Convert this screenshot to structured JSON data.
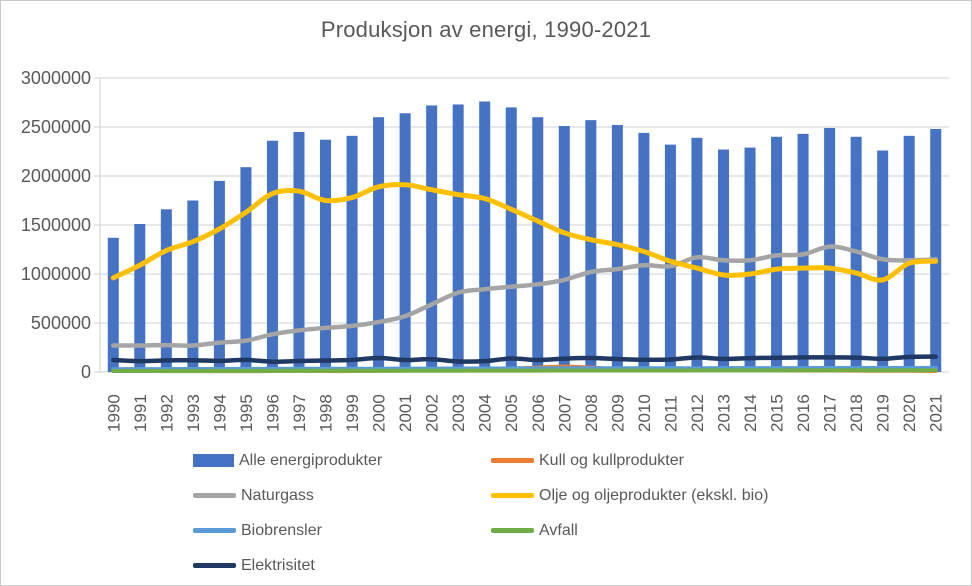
{
  "chart_data": {
    "type": "bar",
    "title": "Produksjon av energi, 1990-2021",
    "xlabel": "",
    "ylabel": "",
    "ylim": [
      0,
      3000000
    ],
    "y_ticks": [
      0,
      500000,
      1000000,
      1500000,
      2000000,
      2500000,
      3000000
    ],
    "grid": true,
    "legend_position": "bottom",
    "text_color": "#595959",
    "grid_color": "#D9D9D9",
    "categories": [
      1990,
      1991,
      1992,
      1993,
      1994,
      1995,
      1996,
      1997,
      1998,
      1999,
      2000,
      2001,
      2002,
      2003,
      2004,
      2005,
      2006,
      2007,
      2008,
      2009,
      2010,
      2011,
      2012,
      2013,
      2014,
      2015,
      2016,
      2017,
      2018,
      2019,
      2020,
      2021
    ],
    "bar_series": {
      "name": "Alle energiprodukter",
      "color": "#4472C4",
      "values": [
        1370000,
        1510000,
        1660000,
        1750000,
        1950000,
        2090000,
        2360000,
        2450000,
        2370000,
        2410000,
        2600000,
        2640000,
        2720000,
        2730000,
        2760000,
        2700000,
        2600000,
        2510000,
        2570000,
        2520000,
        2440000,
        2320000,
        2390000,
        2270000,
        2290000,
        2400000,
        2430000,
        2490000,
        2400000,
        2260000,
        2410000,
        2480000
      ]
    },
    "line_series": [
      {
        "name": "Kull og kullprodukter",
        "color": "#ED7D31",
        "stroke_width": 4,
        "values": [
          10000,
          10000,
          9000,
          9000,
          9000,
          9000,
          10000,
          12000,
          10000,
          10000,
          12000,
          15000,
          20000,
          25000,
          30000,
          35000,
          45000,
          55000,
          45000,
          30000,
          25000,
          20000,
          25000,
          32000,
          30000,
          20000,
          15000,
          15000,
          14000,
          13000,
          13000,
          10000
        ]
      },
      {
        "name": "Naturgass",
        "color": "#A5A5A5",
        "stroke_width": 4.5,
        "values": [
          270000,
          270000,
          275000,
          270000,
          300000,
          320000,
          385000,
          425000,
          450000,
          470000,
          510000,
          570000,
          690000,
          810000,
          845000,
          870000,
          895000,
          940000,
          1020000,
          1050000,
          1090000,
          1080000,
          1170000,
          1140000,
          1140000,
          1190000,
          1200000,
          1280000,
          1230000,
          1150000,
          1140000,
          1150000
        ]
      },
      {
        "name": "Olje og oljeprodukter (ekskl. bio)",
        "color": "#FFC000",
        "stroke_width": 5,
        "values": [
          960000,
          1090000,
          1240000,
          1330000,
          1460000,
          1630000,
          1820000,
          1845000,
          1750000,
          1780000,
          1890000,
          1910000,
          1860000,
          1810000,
          1770000,
          1660000,
          1540000,
          1420000,
          1350000,
          1300000,
          1230000,
          1130000,
          1060000,
          990000,
          1000000,
          1050000,
          1060000,
          1060000,
          1010000,
          940000,
          1110000,
          1130000
        ]
      },
      {
        "name": "Biobrensler",
        "color": "#5B9BD5",
        "stroke_width": 4,
        "values": [
          30000,
          30000,
          30000,
          31000,
          31000,
          32000,
          32000,
          33000,
          33000,
          34000,
          34000,
          35000,
          35000,
          36000,
          36000,
          37000,
          37000,
          38000,
          38000,
          38000,
          39000,
          39000,
          39000,
          40000,
          40000,
          40000,
          40000,
          41000,
          41000,
          41000,
          41000,
          42000
        ]
      },
      {
        "name": "Avfall",
        "color": "#70AD47",
        "stroke_width": 4,
        "values": [
          10000,
          10000,
          10000,
          10000,
          11000,
          11000,
          11000,
          12000,
          12000,
          12000,
          12000,
          13000,
          13000,
          13000,
          14000,
          14000,
          14000,
          15000,
          15000,
          15000,
          15000,
          15000,
          16000,
          16000,
          16000,
          16000,
          17000,
          17000,
          17000,
          17000,
          17000,
          17000
        ]
      },
      {
        "name": "Elektrisitet",
        "color": "#1F3864",
        "stroke_width": 4.5,
        "values": [
          122000,
          111000,
          118000,
          120000,
          113000,
          123000,
          105000,
          112000,
          117000,
          123000,
          143000,
          122000,
          131000,
          107000,
          111000,
          138000,
          122000,
          137000,
          143000,
          133000,
          125000,
          128000,
          148000,
          134000,
          142000,
          145000,
          149000,
          149000,
          147000,
          135000,
          154000,
          157000
        ]
      }
    ],
    "legend_order": [
      "Alle energiprodukter",
      "Kull og kullprodukter",
      "Naturgass",
      "Olje og oljeprodukter (ekskl. bio)",
      "Biobrensler",
      "Avfall",
      "Elektrisitet"
    ]
  }
}
